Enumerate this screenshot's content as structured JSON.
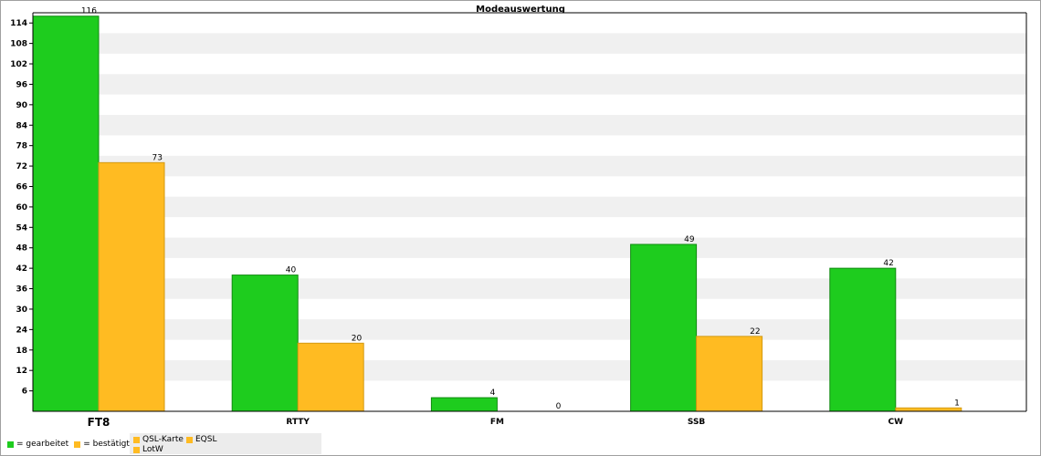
{
  "chart_data": {
    "type": "bar",
    "title": "Modeauswertung",
    "categories": [
      "FT8",
      "RTTY",
      "FM",
      "SSB",
      "CW"
    ],
    "highlighted_category": "FT8",
    "series": [
      {
        "name": "gearbeitet",
        "color": "#1ecc1e",
        "values": [
          116,
          40,
          4,
          49,
          42
        ]
      },
      {
        "name": "bestätigt",
        "color": "#ffbb22",
        "values": [
          73,
          20,
          0,
          22,
          1
        ]
      }
    ],
    "ylim": [
      0,
      117
    ],
    "yticks": [
      6,
      12,
      18,
      24,
      30,
      36,
      42,
      48,
      54,
      60,
      66,
      72,
      78,
      84,
      90,
      96,
      102,
      108,
      114
    ],
    "grid": "alternating horizontal bands",
    "legend_position": "bottom-left"
  },
  "legend": {
    "worked_label": "= gearbeitet",
    "confirmed_label": "= bestätigt"
  },
  "qsl_types": {
    "items": [
      {
        "label": "QSL-Karte",
        "color": "#ffbb22"
      },
      {
        "label": "EQSL",
        "color": "#ffbb22"
      },
      {
        "label": "LotW",
        "color": "#ffbb22"
      }
    ]
  }
}
